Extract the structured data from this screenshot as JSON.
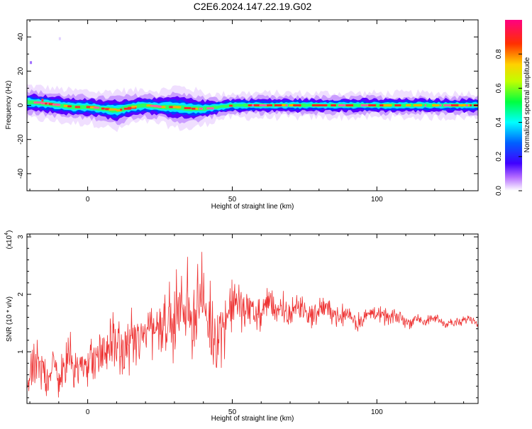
{
  "title": "C2E6.2024.147.22.19.G02",
  "chart_data": [
    {
      "type": "heatmap",
      "xlabel": "Height of straight line (km)",
      "ylabel": "Frequency (Hz)",
      "xlim": [
        -21,
        135
      ],
      "ylim": [
        -50,
        50
      ],
      "x_ticks": [
        0,
        50,
        100
      ],
      "y_ticks": [
        -40,
        -20,
        0,
        20,
        40
      ],
      "x_tick_labels": [
        "0",
        "50",
        "100"
      ],
      "y_tick_labels": [
        "-40",
        "-20",
        "0",
        "20",
        "40"
      ],
      "colorbar": {
        "label": "Normalized spectral amplitude",
        "range": [
          0,
          1
        ],
        "ticks": [
          0.0,
          0.2,
          0.4,
          0.6,
          0.8
        ],
        "tick_labels": [
          "0.0",
          "0.2",
          "0.4",
          "0.6",
          "0.8"
        ],
        "colors": [
          "#ffffff",
          "#7b00ff",
          "#0000ff",
          "#00ffff",
          "#00ff00",
          "#ffff00",
          "#ff8000",
          "#ff0000",
          "#ff00aa"
        ]
      },
      "band": {
        "x": [
          -21,
          -15,
          -10,
          -5,
          0,
          5,
          10,
          15,
          20,
          25,
          30,
          35,
          40,
          45,
          50,
          60,
          70,
          80,
          90,
          100,
          110,
          120,
          135
        ],
        "center_hz": [
          2,
          1,
          0,
          -1,
          -1,
          -2,
          -3,
          -1,
          0,
          -1,
          -1,
          -2,
          -2,
          -1,
          0,
          0,
          0,
          0,
          0,
          0,
          0,
          0,
          0
        ],
        "halfwidth_hz": [
          4,
          4,
          4,
          4,
          4,
          4,
          5,
          4,
          4,
          4,
          5,
          5,
          4,
          3,
          3,
          3,
          3,
          3,
          3,
          3,
          3,
          3,
          3
        ]
      }
    },
    {
      "type": "line",
      "xlabel": "Height of straight line (km)",
      "ylabel": "SNR (10 * v/v)",
      "scale_label": "(x10",
      "scale_exp": "4",
      "scale_close": ")",
      "xlim": [
        -21,
        135
      ],
      "ylim": [
        0.1,
        3.05
      ],
      "x_ticks": [
        0,
        50,
        100
      ],
      "y_ticks": [
        1,
        2,
        3
      ],
      "x_tick_labels": [
        "0",
        "50",
        "100"
      ],
      "y_tick_labels": [
        "1",
        "2",
        "3"
      ],
      "series": [
        {
          "color": "#ee3333",
          "x": [
            -21,
            -18,
            -15,
            -12,
            -9,
            -6,
            -3,
            0,
            3,
            6,
            9,
            12,
            15,
            18,
            21,
            24,
            27,
            30,
            33,
            36,
            39,
            42,
            45,
            48,
            51,
            54,
            57,
            60,
            63,
            66,
            69,
            72,
            75,
            78,
            81,
            84,
            87,
            90,
            93,
            96,
            99,
            102,
            105,
            108,
            111,
            114,
            117,
            120,
            123,
            126,
            129,
            132,
            135
          ],
          "y": [
            0.4,
            0.8,
            0.6,
            0.7,
            0.6,
            0.9,
            0.7,
            0.8,
            0.9,
            1.0,
            1.2,
            0.9,
            1.3,
            1.1,
            1.5,
            1.4,
            1.6,
            1.5,
            1.8,
            1.6,
            2.0,
            1.4,
            1.3,
            1.6,
            1.9,
            1.7,
            1.8,
            1.6,
            1.9,
            1.7,
            1.6,
            1.8,
            1.7,
            1.6,
            1.8,
            1.7,
            1.6,
            1.7,
            1.5,
            1.6,
            1.7,
            1.6,
            1.6,
            1.6,
            1.5,
            1.6,
            1.5,
            1.6,
            1.5,
            1.5,
            1.5,
            1.6,
            1.5
          ],
          "spread": [
            0.35,
            0.6,
            0.6,
            0.6,
            0.6,
            0.6,
            0.6,
            0.55,
            0.6,
            0.55,
            0.7,
            0.7,
            0.7,
            0.7,
            0.75,
            0.8,
            0.8,
            0.85,
            0.9,
            0.95,
            0.95,
            0.95,
            0.9,
            0.75,
            0.6,
            0.55,
            0.5,
            0.45,
            0.4,
            0.38,
            0.36,
            0.34,
            0.32,
            0.3,
            0.3,
            0.28,
            0.28,
            0.26,
            0.25,
            0.24,
            0.22,
            0.2,
            0.2,
            0.18,
            0.16,
            0.15,
            0.14,
            0.13,
            0.12,
            0.12,
            0.12,
            0.12,
            0.12
          ]
        }
      ]
    }
  ]
}
